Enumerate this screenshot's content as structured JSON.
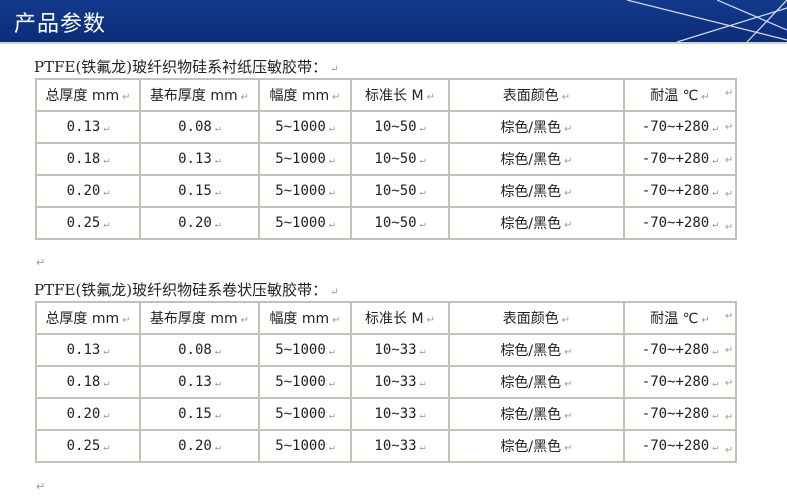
{
  "header": {
    "title": "产品参数"
  },
  "para_mark": "↵",
  "tables": [
    {
      "caption": "PTFE(铁氟龙)玻纤织物硅系衬纸压敏胶带：",
      "columns": [
        "总厚度 mm",
        "基布厚度 mm",
        "幅度 mm",
        "标准长 M",
        "表面颜色",
        "耐温 ℃"
      ],
      "rows": [
        [
          "0.13",
          "0.08",
          "5~1000",
          "10~50",
          "棕色/黑色",
          "-70~+280"
        ],
        [
          "0.18",
          "0.13",
          "5~1000",
          "10~50",
          "棕色/黑色",
          "-70~+280"
        ],
        [
          "0.20",
          "0.15",
          "5~1000",
          "10~50",
          "棕色/黑色",
          "-70~+280"
        ],
        [
          "0.25",
          "0.20",
          "5~1000",
          "10~50",
          "棕色/黑色",
          "-70~+280"
        ]
      ]
    },
    {
      "caption": "PTFE(铁氟龙)玻纤织物硅系卷状压敏胶带：",
      "columns": [
        "总厚度 mm",
        "基布厚度 mm",
        "幅度 mm",
        "标准长 M",
        "表面颜色",
        "耐温 ℃"
      ],
      "rows": [
        [
          "0.13",
          "0.08",
          "5~1000",
          "10~33",
          "棕色/黑色",
          "-70~+280"
        ],
        [
          "0.18",
          "0.13",
          "5~1000",
          "10~33",
          "棕色/黑色",
          "-70~+280"
        ],
        [
          "0.20",
          "0.15",
          "5~1000",
          "10~33",
          "棕色/黑色",
          "-70~+280"
        ],
        [
          "0.25",
          "0.20",
          "5~1000",
          "10~33",
          "棕色/黑色",
          "-70~+280"
        ]
      ]
    }
  ]
}
